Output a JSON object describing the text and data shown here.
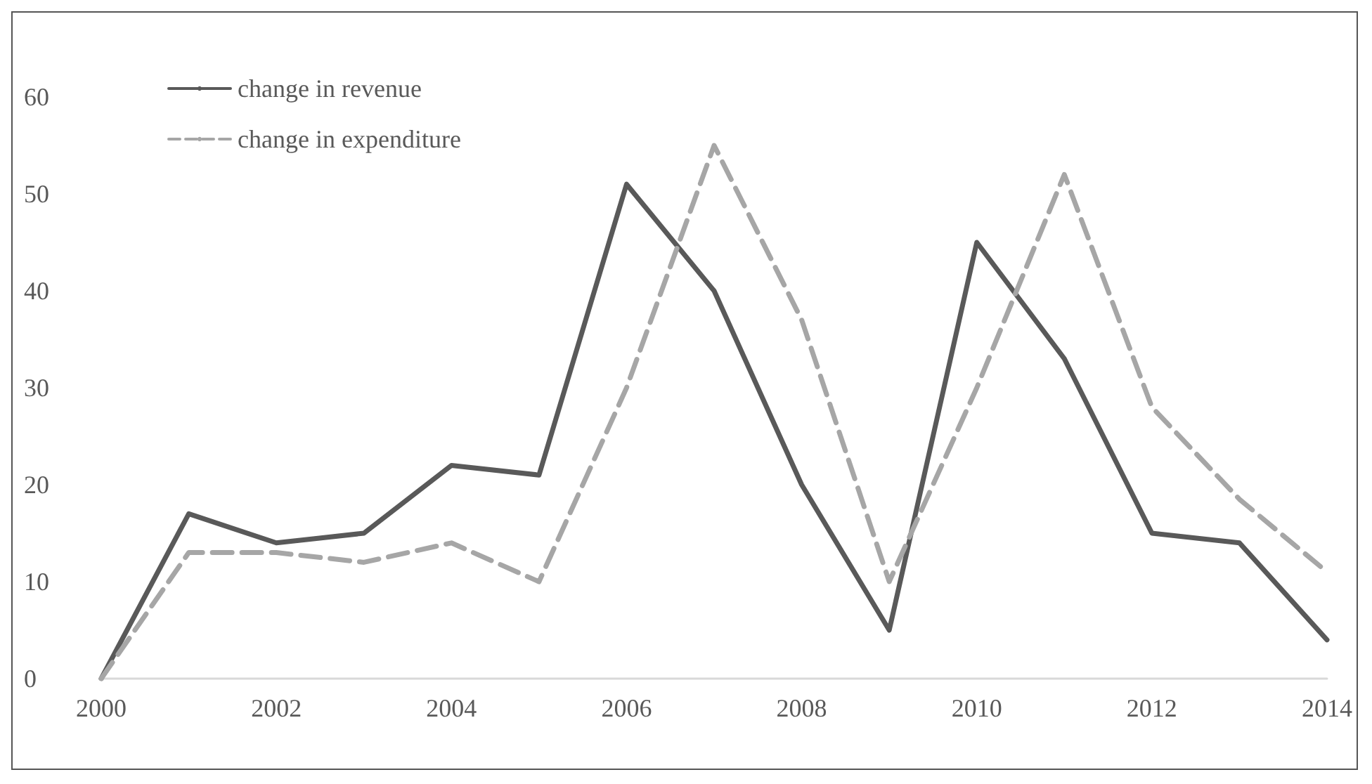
{
  "chart_data": {
    "type": "line",
    "x": [
      2000,
      2001,
      2002,
      2003,
      2004,
      2005,
      2006,
      2007,
      2008,
      2009,
      2010,
      2011,
      2012,
      2013,
      2014
    ],
    "series": [
      {
        "name": "change in revenue",
        "color": "#595959",
        "line_style": "solid",
        "values": [
          0,
          17,
          14,
          15,
          22,
          21,
          51,
          40,
          20,
          5,
          45,
          33,
          15,
          14,
          4
        ]
      },
      {
        "name": "change in expenditure",
        "color": "#a6a6a6",
        "line_style": "dashed",
        "values": [
          0,
          13,
          13,
          12,
          14,
          10,
          30,
          55,
          37,
          10,
          30,
          52,
          28,
          18.5,
          11
        ]
      }
    ],
    "xlim": [
      2000,
      2014
    ],
    "xticks": [
      2000,
      2002,
      2004,
      2006,
      2008,
      2010,
      2012,
      2014
    ],
    "ylim": [
      0,
      60
    ],
    "yticks": [
      0,
      10,
      20,
      30,
      40,
      50,
      60
    ],
    "grid": false,
    "legend": "top left",
    "marker": "none"
  }
}
